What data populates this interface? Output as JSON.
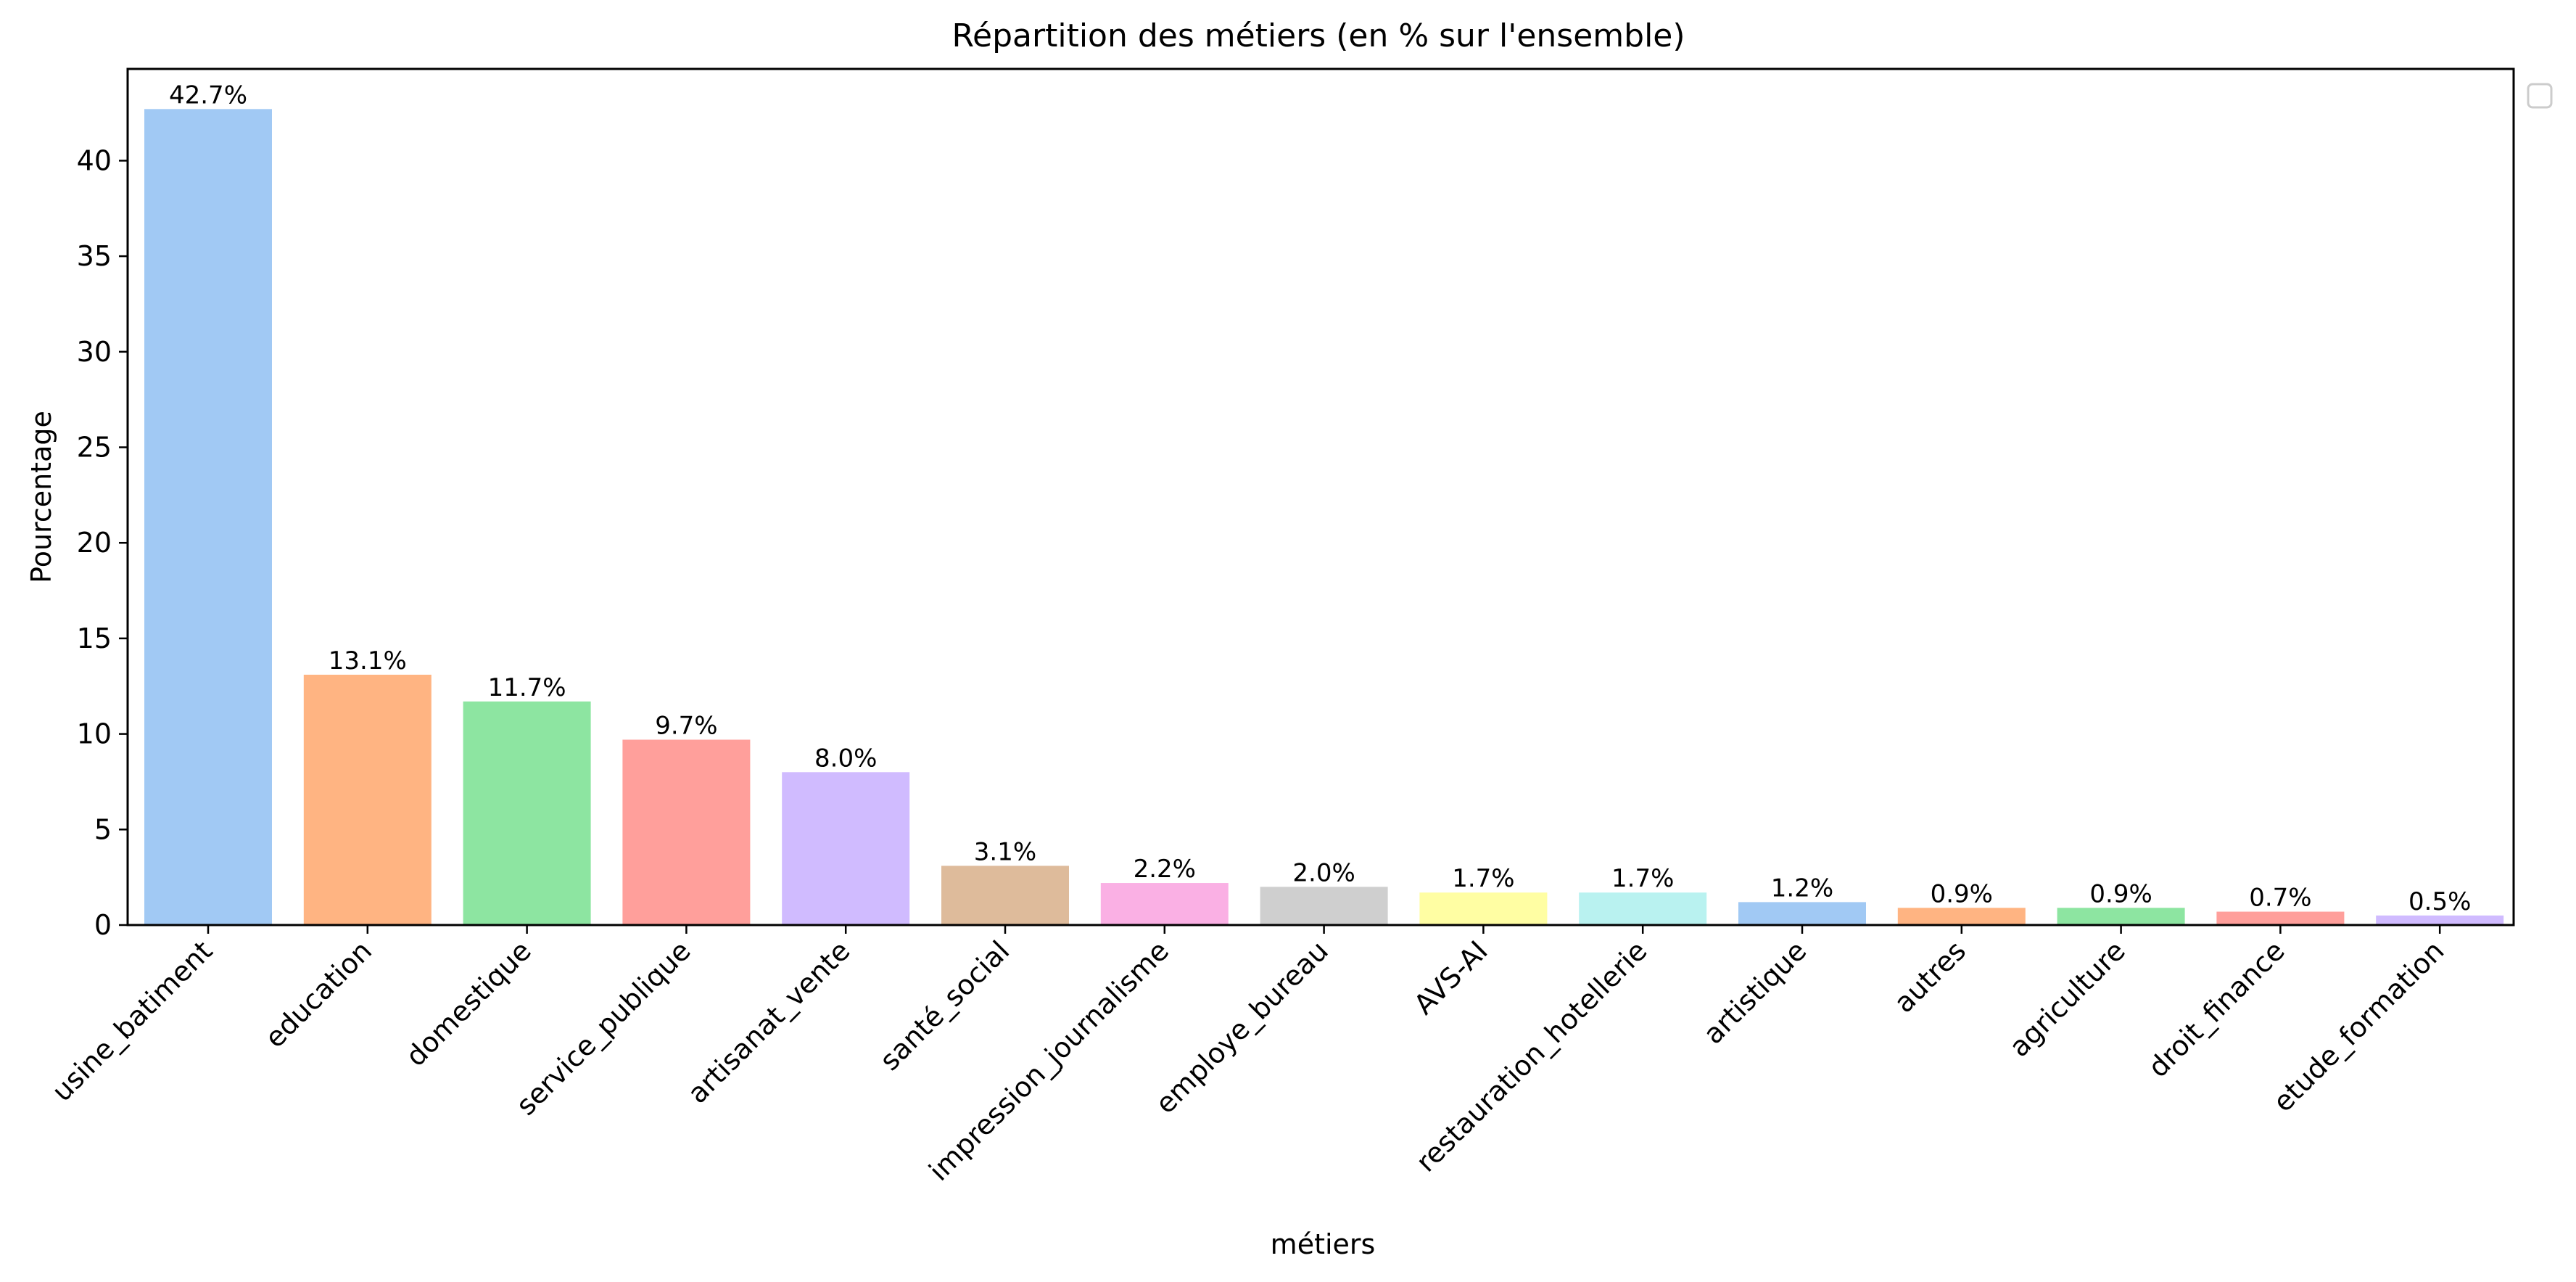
{
  "chart_data": {
    "type": "bar",
    "title": "Répartition des métiers  (en % sur l'ensemble)",
    "xlabel": "métiers",
    "ylabel": "Pourcentage",
    "ylim": [
      0,
      44.8
    ],
    "yticks": [
      0,
      5,
      10,
      15,
      20,
      25,
      30,
      35,
      40
    ],
    "categories": [
      "usine_batiment",
      "education",
      "domestique",
      "service_publique",
      "artisanat_vente",
      "santé_social",
      "impression_journalisme",
      "employe_bureau",
      "AVS-AI",
      "restauration_hotellerie",
      "artistique",
      "autres",
      "agriculture",
      "droit_finance",
      "etude_formation"
    ],
    "values": [
      42.7,
      13.1,
      11.7,
      9.7,
      8.0,
      3.1,
      2.2,
      2.0,
      1.7,
      1.7,
      1.2,
      0.9,
      0.9,
      0.7,
      0.5
    ],
    "labels": [
      "42.7%",
      "13.1%",
      "11.7%",
      "9.7%",
      "8.0%",
      "3.1%",
      "2.2%",
      "2.0%",
      "1.7%",
      "1.7%",
      "1.2%",
      "0.9%",
      "0.9%",
      "0.7%",
      "0.5%"
    ],
    "colors": [
      "#a1c9f4",
      "#ffb482",
      "#8de5a1",
      "#ff9f9b",
      "#d0bbff",
      "#debb9b",
      "#fab0e4",
      "#cfcfcf",
      "#fffea3",
      "#b9f2f0",
      "#a1c9f4",
      "#ffb482",
      "#8de5a1",
      "#ff9f9b",
      "#d0bbff"
    ],
    "grid": false,
    "legend": "empty box, top-right outside plot"
  }
}
